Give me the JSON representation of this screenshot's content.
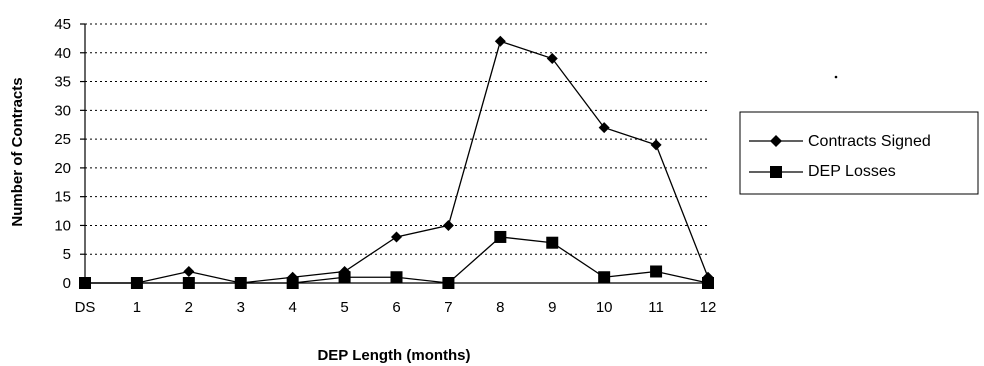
{
  "chart_data": {
    "type": "line",
    "title": "",
    "xlabel": "DEP Length (months)",
    "ylabel": "Number of Contracts",
    "categories": [
      "DS",
      "1",
      "2",
      "3",
      "4",
      "5",
      "6",
      "7",
      "8",
      "9",
      "10",
      "11",
      "12"
    ],
    "ylim": [
      0,
      45
    ],
    "yticks": [
      0,
      5,
      10,
      15,
      20,
      25,
      30,
      35,
      40,
      45
    ],
    "grid": true,
    "legend_position": "right",
    "series": [
      {
        "name": "Contracts Signed",
        "marker": "diamond",
        "values": [
          0,
          0,
          2,
          0,
          1,
          2,
          8,
          10,
          42,
          39,
          27,
          24,
          1
        ]
      },
      {
        "name": "DEP Losses",
        "marker": "square",
        "values": [
          0,
          0,
          0,
          0,
          0,
          1,
          1,
          0,
          8,
          7,
          1,
          2,
          0
        ]
      }
    ]
  }
}
